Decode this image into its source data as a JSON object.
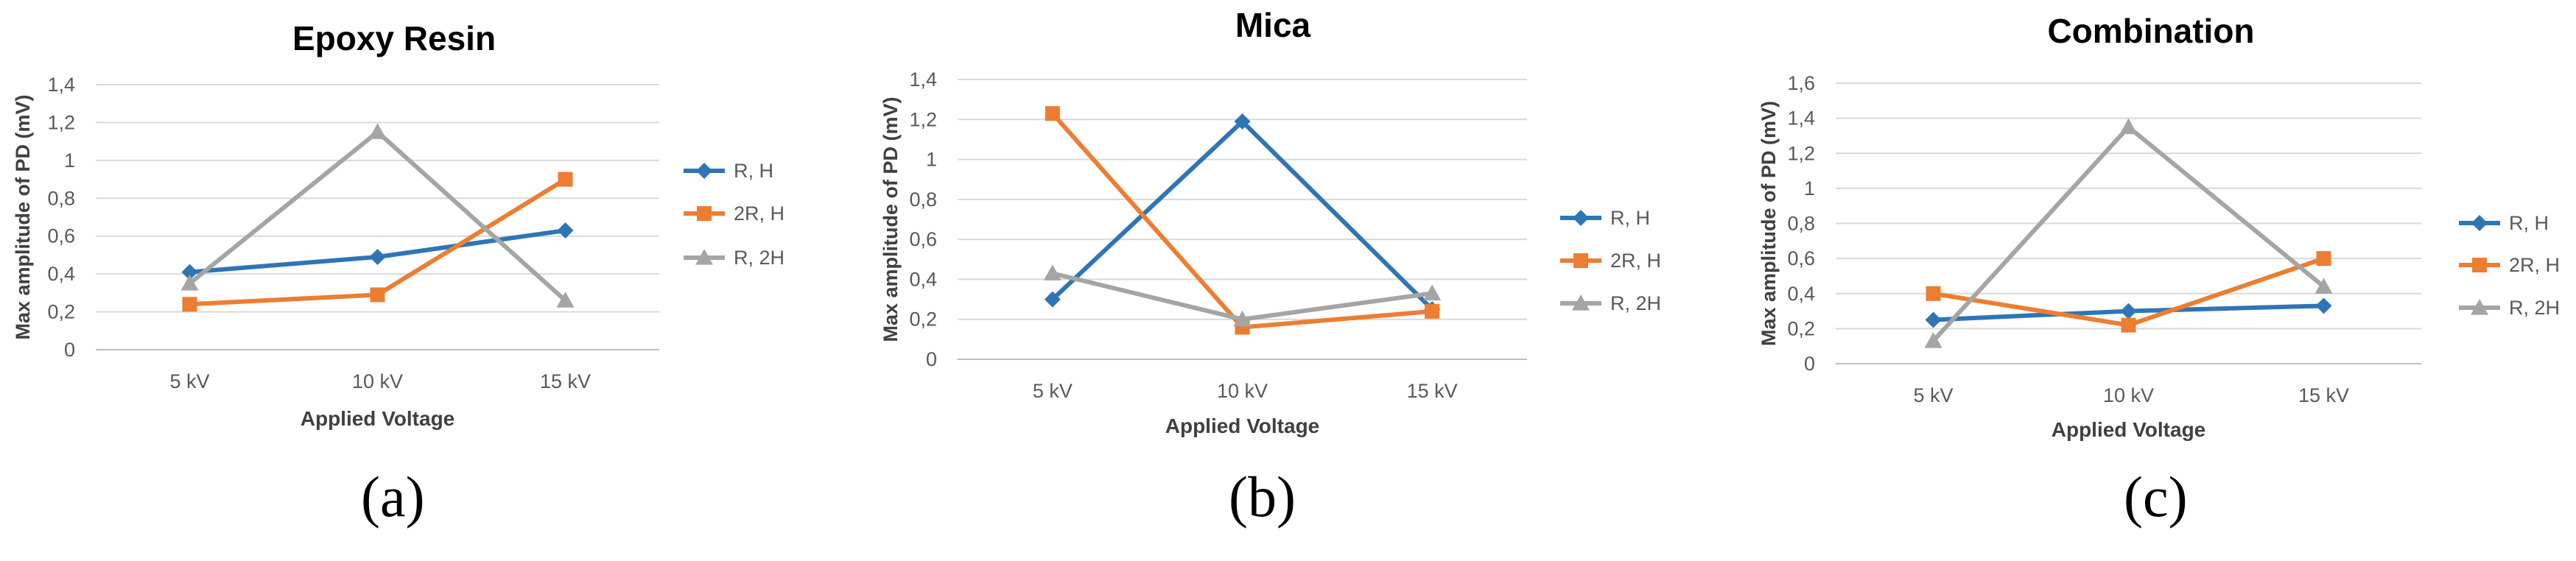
{
  "chart_data": [
    {
      "type": "line",
      "title": "Epoxy Resin",
      "panel_label": "(a)",
      "xlabel": "Applied Voltage",
      "ylabel": "Max amplitude of PD (mV)",
      "categories": [
        "5 kV",
        "10 kV",
        "15 kV"
      ],
      "ylim": [
        0,
        1.4
      ],
      "yticks": [
        "0",
        "0,2",
        "0,4",
        "0,6",
        "0,8",
        "1",
        "1,2",
        "1,4"
      ],
      "grid": true,
      "legend": "right",
      "series": [
        {
          "name": "R, H",
          "values": [
            0.41,
            0.49,
            0.63
          ],
          "color": "#2E75B6",
          "marker": "diamond"
        },
        {
          "name": "2R, H",
          "values": [
            0.24,
            0.29,
            0.9
          ],
          "color": "#ED7D31",
          "marker": "square"
        },
        {
          "name": "R, 2H",
          "values": [
            0.35,
            1.15,
            0.26
          ],
          "color": "#A5A5A5",
          "marker": "triangle"
        }
      ]
    },
    {
      "type": "line",
      "title": "Mica",
      "panel_label": "(b)",
      "xlabel": "Applied Voltage",
      "ylabel": "Max amplitude of PD (mV)",
      "categories": [
        "5 kV",
        "10 kV",
        "15 kV"
      ],
      "ylim": [
        0,
        1.4
      ],
      "yticks": [
        "0",
        "0,2",
        "0,4",
        "0,6",
        "0,8",
        "1",
        "1,2",
        "1,4"
      ],
      "grid": true,
      "legend": "right",
      "series": [
        {
          "name": "R, H",
          "values": [
            0.3,
            1.19,
            0.25
          ],
          "color": "#2E75B6",
          "marker": "diamond"
        },
        {
          "name": "2R, H",
          "values": [
            1.23,
            0.16,
            0.24
          ],
          "color": "#ED7D31",
          "marker": "square"
        },
        {
          "name": "R, 2H",
          "values": [
            0.43,
            0.2,
            0.33
          ],
          "color": "#A5A5A5",
          "marker": "triangle"
        }
      ]
    },
    {
      "type": "line",
      "title": "Combination",
      "panel_label": "(c)",
      "xlabel": "Applied Voltage",
      "ylabel": "Max amplitude of PD (mV)",
      "categories": [
        "5 kV",
        "10 kV",
        "15 kV"
      ],
      "ylim": [
        0,
        1.6
      ],
      "yticks": [
        "0",
        "0,2",
        "0,4",
        "0,6",
        "0,8",
        "1",
        "1,2",
        "1,4",
        "1,6"
      ],
      "grid": true,
      "legend": "right",
      "series": [
        {
          "name": "R, H",
          "values": [
            0.25,
            0.3,
            0.33
          ],
          "color": "#2E75B6",
          "marker": "diamond"
        },
        {
          "name": "2R, H",
          "values": [
            0.4,
            0.22,
            0.6
          ],
          "color": "#ED7D31",
          "marker": "square"
        },
        {
          "name": "R, 2H",
          "values": [
            0.13,
            1.35,
            0.44
          ],
          "color": "#A5A5A5",
          "marker": "triangle"
        }
      ]
    }
  ]
}
